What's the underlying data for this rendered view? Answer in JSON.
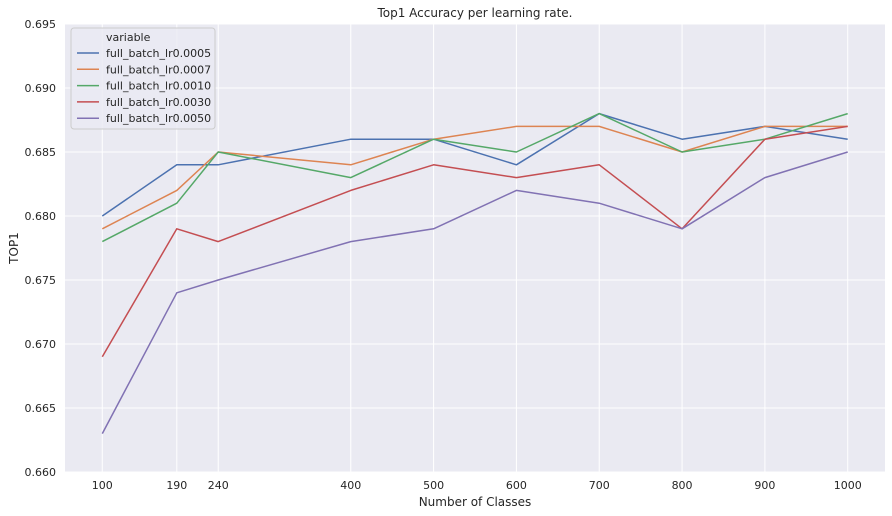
{
  "chart_data": {
    "type": "line",
    "title": "Top1 Accuracy per learning rate.",
    "xlabel": "Number of Classes",
    "ylabel": "TOP1",
    "x": [
      100,
      190,
      240,
      400,
      500,
      600,
      700,
      800,
      900,
      1000
    ],
    "xticks": [
      100,
      190,
      240,
      400,
      500,
      600,
      700,
      800,
      900,
      1000
    ],
    "yticks": [
      0.66,
      0.665,
      0.67,
      0.675,
      0.68,
      0.685,
      0.69,
      0.695
    ],
    "ytick_labels": [
      "0.660",
      "0.665",
      "0.670",
      "0.675",
      "0.680",
      "0.685",
      "0.690",
      "0.695"
    ],
    "xlim": [
      55,
      1045
    ],
    "ylim": [
      0.66,
      0.695
    ],
    "grid": true,
    "legend": {
      "title": "variable",
      "placement": "top-left"
    },
    "series": [
      {
        "name": "full_batch_lr0.0005",
        "color": "#4c72b0",
        "values": [
          0.68,
          0.684,
          0.684,
          0.686,
          0.686,
          0.684,
          0.688,
          0.686,
          0.687,
          0.686
        ]
      },
      {
        "name": "full_batch_lr0.0007",
        "color": "#dd8452",
        "values": [
          0.679,
          0.682,
          0.685,
          0.684,
          0.686,
          0.687,
          0.687,
          0.685,
          0.687,
          0.687
        ]
      },
      {
        "name": "full_batch_lr0.0010",
        "color": "#55a868",
        "values": [
          0.678,
          0.681,
          0.685,
          0.683,
          0.686,
          0.685,
          0.688,
          0.685,
          0.686,
          0.688
        ]
      },
      {
        "name": "full_batch_lr0.0030",
        "color": "#c44e52",
        "values": [
          0.669,
          0.679,
          0.678,
          0.682,
          0.684,
          0.683,
          0.684,
          0.679,
          0.686,
          0.687
        ]
      },
      {
        "name": "full_batch_lr0.0050",
        "color": "#8172b3",
        "values": [
          0.663,
          0.674,
          0.675,
          0.678,
          0.679,
          0.682,
          0.681,
          0.679,
          0.683,
          0.685
        ]
      }
    ]
  }
}
